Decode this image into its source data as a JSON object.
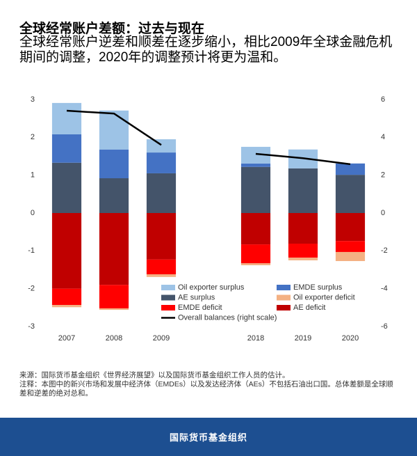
{
  "title": "全球经常账户差额：过去与现在",
  "subtitle": "全球经常账户逆差和顺差在逐步缩小，相比2009年全球金融危机期间的调整，2020年的调整预计将更为温和。",
  "chart_data": {
    "type": "stacked-bar-line",
    "categories": [
      "2007",
      "2008",
      "2009",
      null,
      "2018",
      "2019",
      "2020"
    ],
    "ylim": [
      -3,
      3
    ],
    "yticks": [
      -3,
      -2,
      -1,
      0,
      1,
      2,
      3
    ],
    "y2lim": [
      -6,
      6
    ],
    "y2ticks": [
      -6,
      -4,
      -2,
      0,
      2,
      4,
      6
    ],
    "grid": false,
    "series": [
      {
        "name": "Oil exporter surplus",
        "color": "#9dc3e6",
        "values": [
          0.83,
          1.03,
          0.35,
          null,
          0.44,
          0.5,
          0
        ]
      },
      {
        "name": "EMDE surplus",
        "color": "#4472c4",
        "values": [
          0.75,
          0.76,
          0.55,
          null,
          0.09,
          0,
          0.3
        ]
      },
      {
        "name": "AE surplus",
        "color": "#44546a",
        "values": [
          1.33,
          0.92,
          1.05,
          null,
          1.22,
          1.18,
          1.01
        ]
      },
      {
        "name": "Oil exporter deficit",
        "color": "#f4b183",
        "values": [
          -0.06,
          -0.04,
          -0.07,
          null,
          -0.05,
          -0.07,
          -0.24
        ]
      },
      {
        "name": "EMDE deficit",
        "color": "#ff0000",
        "values": [
          -0.43,
          -0.62,
          -0.39,
          null,
          -0.5,
          -0.37,
          -0.29
        ]
      },
      {
        "name": "AE deficit",
        "color": "#c00000",
        "values": [
          -2.0,
          -1.9,
          -1.23,
          null,
          -0.83,
          -0.81,
          -0.74
        ]
      },
      {
        "name": "Overall balances (right scale)",
        "color": "#000000",
        "axis": "y2",
        "type": "line",
        "values": [
          5.41,
          5.26,
          3.6,
          null,
          3.13,
          2.9,
          2.58
        ]
      }
    ]
  },
  "source": "来源：国际货币基金组织《世界经济展望》以及国际货币基金组织工作人员的估计。",
  "note": "注释：本图中的新兴市场和发展中经济体（EMDEs）以及发达经济体（AEs）不包括石油出口国。总体差额是全球顺差和逆差的绝对总和。",
  "footer": "国际货币基金组织"
}
